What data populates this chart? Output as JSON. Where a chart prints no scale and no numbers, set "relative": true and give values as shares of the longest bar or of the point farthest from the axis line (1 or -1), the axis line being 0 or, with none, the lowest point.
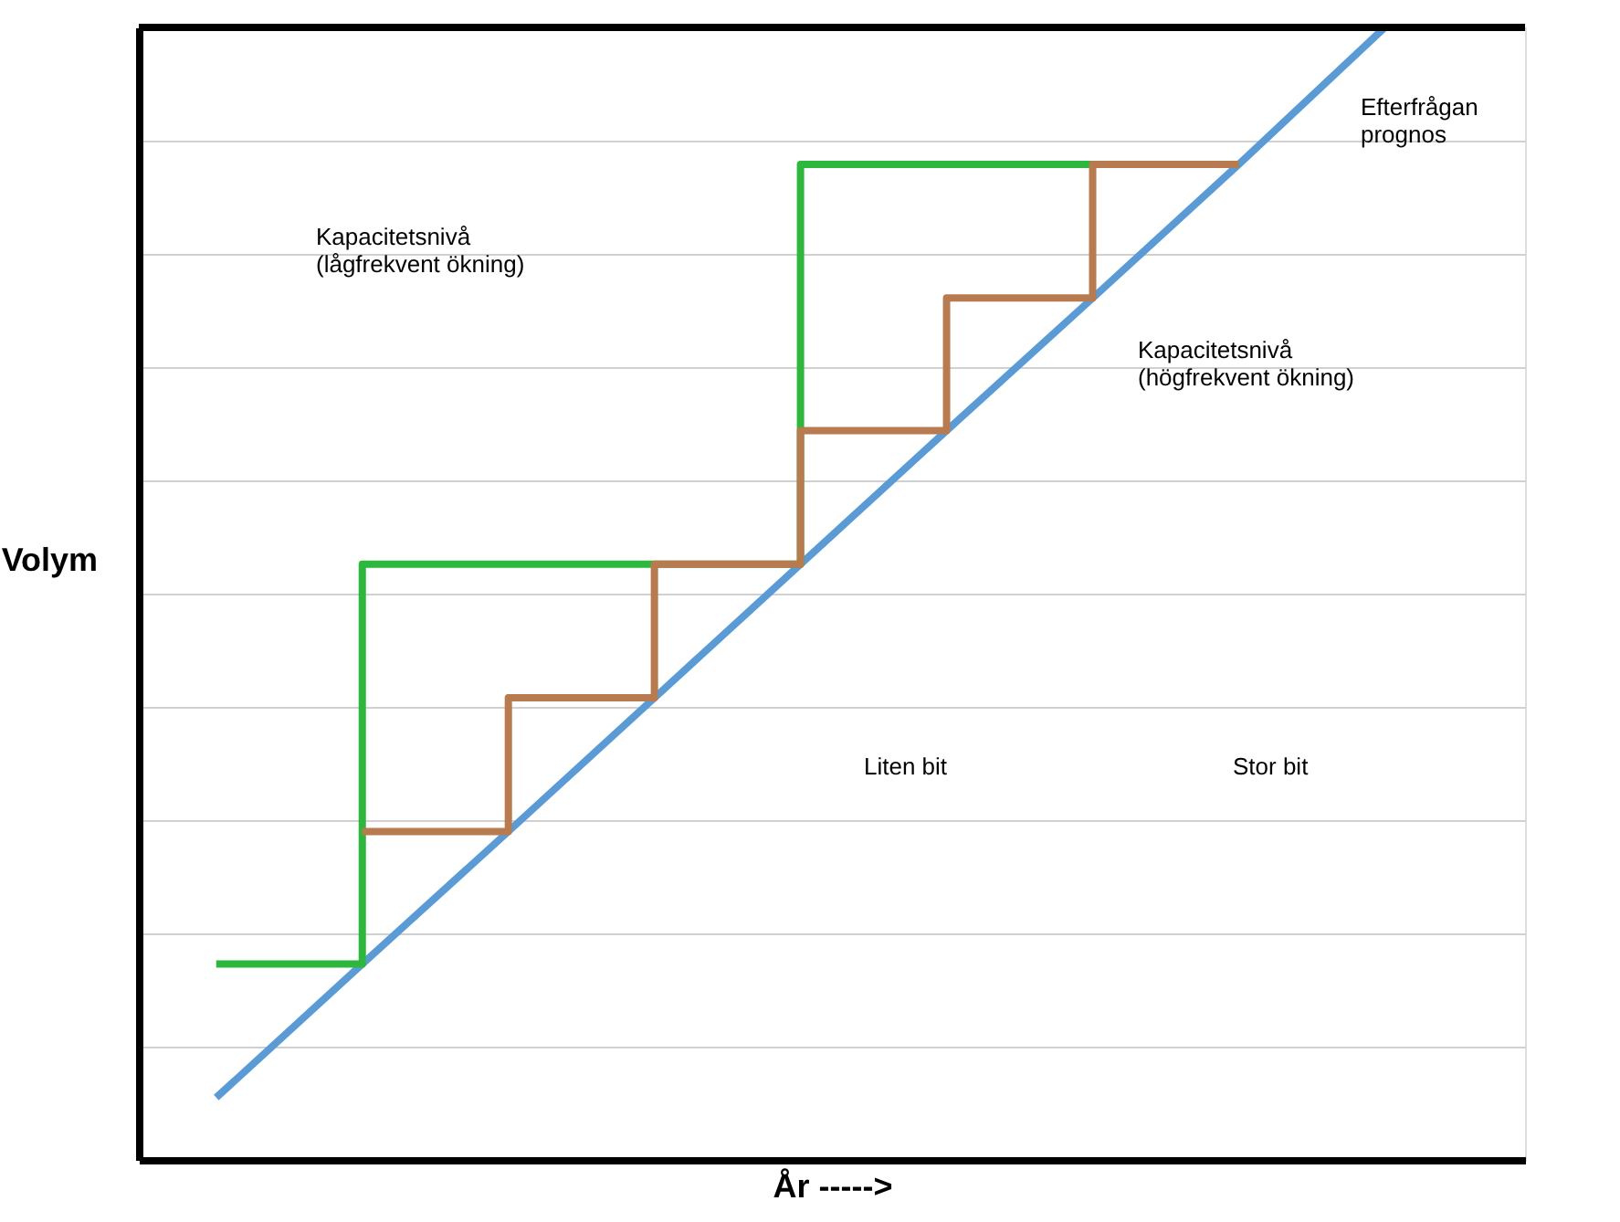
{
  "chart_data": {
    "type": "line",
    "relative": true,
    "xlabel": "År ----->",
    "ylabel": "Volym",
    "categories": [
      null,
      null,
      null,
      null,
      null,
      null,
      null,
      null,
      null
    ],
    "tick_labels": false,
    "grid": "y",
    "marker": "none",
    "line_style": "solid",
    "series": [
      {
        "type": "line",
        "color": "#5b9bd5",
        "values": [
          0.055,
          0.173,
          0.29,
          0.408,
          0.526,
          0.644,
          0.761,
          0.879,
          1.0
        ]
      },
      {
        "type": "step",
        "color": "#2db83d",
        "values": [
          0.173,
          0.526,
          0.526,
          0.526,
          0.879,
          0.879,
          0.879,
          0.879,
          null
        ]
      },
      {
        "type": "step",
        "color": "#b87a4f",
        "values": [
          null,
          0.29,
          0.408,
          0.526,
          0.644,
          0.761,
          0.879,
          0.879,
          null
        ]
      }
    ],
    "annotations": [
      "Kapacitetsnivå\n(lågfrekvent ökning)",
      "Kapacitetsnivå\n(högfrekvent ökning)",
      "Efterfrågan\nprognos",
      "Liten bit",
      "Stor bit"
    ]
  }
}
